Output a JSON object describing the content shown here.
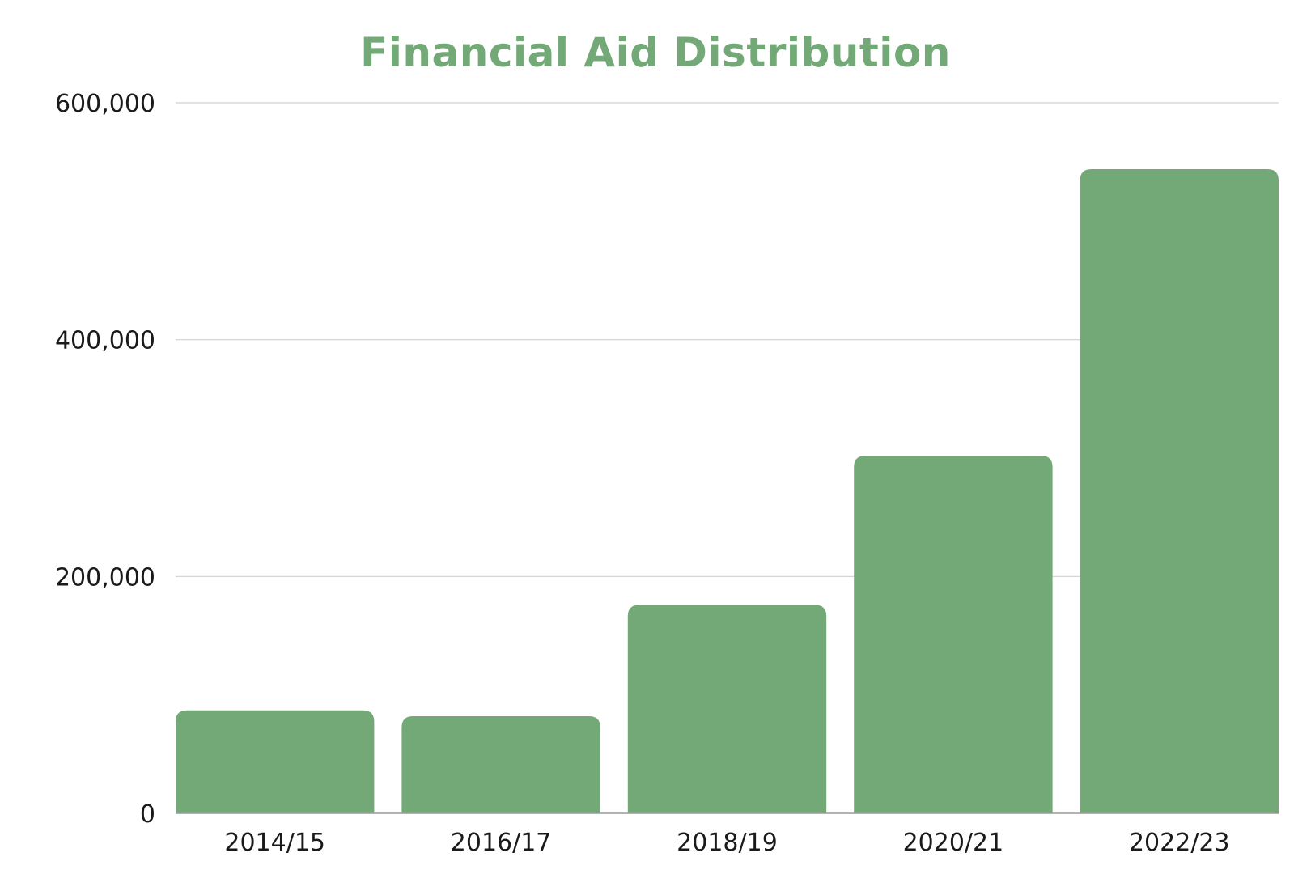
{
  "chart_data": {
    "type": "bar",
    "title": "Financial Aid Distribution",
    "xlabel": "",
    "ylabel": "",
    "categories": [
      "2014/15",
      "2016/17",
      "2018/19",
      "2020/21",
      "2022/23"
    ],
    "values": [
      87000,
      82000,
      176000,
      302000,
      544000
    ],
    "ylim": [
      0,
      600000
    ],
    "yticks": [
      0,
      200000,
      400000,
      600000
    ],
    "ytick_labels": [
      "0",
      "200,000",
      "400,000",
      "600,000"
    ],
    "grid": "horizontal",
    "legend": "none",
    "colors": {
      "bar": "#72a976",
      "title": "#72a976",
      "grid": "#d0d0d0",
      "axis": "#9a9a9a"
    }
  }
}
